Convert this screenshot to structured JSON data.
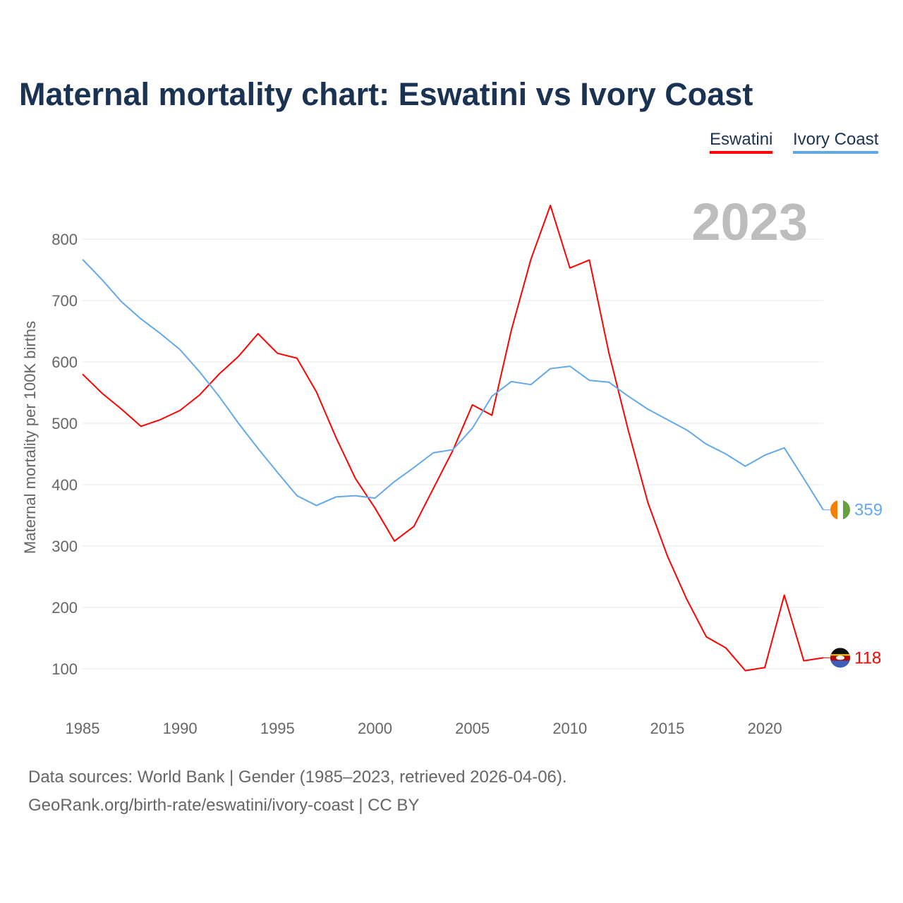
{
  "chart_data": {
    "type": "line",
    "title": "Maternal mortality chart: Eswatini vs Ivory Coast",
    "ylabel": "Maternal mortality per 100K births",
    "xlabel": "",
    "year_label": "2023",
    "x": [
      1985,
      1986,
      1987,
      1988,
      1989,
      1990,
      1991,
      1992,
      1993,
      1994,
      1995,
      1996,
      1997,
      1998,
      1999,
      2000,
      2001,
      2002,
      2003,
      2004,
      2005,
      2006,
      2007,
      2008,
      2009,
      2010,
      2011,
      2012,
      2013,
      2014,
      2015,
      2016,
      2017,
      2018,
      2019,
      2020,
      2021,
      2022,
      2023
    ],
    "xlim": [
      1985,
      2023
    ],
    "ylim": [
      100,
      800
    ],
    "xticks": [
      "1985",
      "1990",
      "1995",
      "2000",
      "2005",
      "2010",
      "2015",
      "2020"
    ],
    "yticks": [
      "100",
      "200",
      "300",
      "400",
      "500",
      "600",
      "700",
      "800"
    ],
    "grid": true,
    "legend_placement": "top-right",
    "series": [
      {
        "name": "Eswatini",
        "color": "#ff0000",
        "end_label": "118",
        "values": [
          580,
          549,
          523,
          495,
          506,
          521,
          546,
          580,
          609,
          646,
          614,
          606,
          551,
          477,
          410,
          362,
          308,
          332,
          394,
          456,
          530,
          513,
          652,
          767,
          855,
          753,
          766,
          615,
          488,
          371,
          284,
          213,
          152,
          134,
          97,
          102,
          220,
          113,
          118
        ]
      },
      {
        "name": "Ivory Coast",
        "color": "#64a8ec",
        "end_label": "359",
        "values": [
          767,
          734,
          698,
          670,
          646,
          620,
          584,
          544,
          500,
          459,
          420,
          382,
          366,
          380,
          382,
          378,
          405,
          428,
          452,
          457,
          492,
          544,
          568,
          563,
          589,
          593,
          570,
          567,
          544,
          523,
          506,
          489,
          466,
          450,
          430,
          448,
          460,
          410,
          359
        ]
      }
    ]
  },
  "footer": {
    "line1": "Data sources: World Bank | Gender (1985–2023, retrieved 2026-04-06).",
    "line2": "GeoRank.org/birth-rate/eswatini/ivory-coast | CC BY"
  }
}
